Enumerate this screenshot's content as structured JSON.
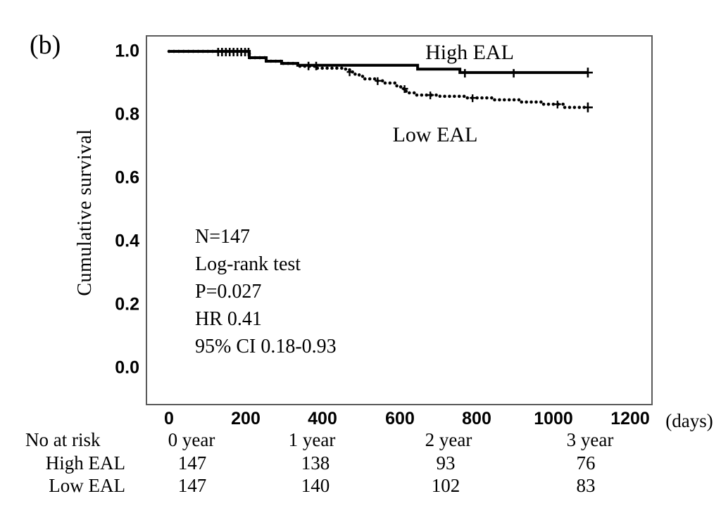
{
  "panel": {
    "label": "(b)"
  },
  "chart_data": {
    "type": "line",
    "subtype": "kaplan-meier-step",
    "title": "",
    "xlabel": "(days)",
    "ylabel": "Cumulative survival",
    "x_ticks": [
      "0",
      "200",
      "400",
      "600",
      "800",
      "1000",
      "1200"
    ],
    "y_ticks": [
      "1.0",
      "0.8",
      "0.6",
      "0.4",
      "0.2",
      "0.0"
    ],
    "x_tick_values": [
      0,
      200,
      400,
      600,
      800,
      1000,
      1200
    ],
    "y_tick_values": [
      1.0,
      0.8,
      0.6,
      0.4,
      0.2,
      0.0
    ],
    "xlim": [
      -60,
      1260
    ],
    "ylim": [
      -0.12,
      1.05
    ],
    "grid": false,
    "legend_position": "labels-on-plot",
    "line_color": "#000000",
    "annotations": [
      "N=147",
      "Log-rank test",
      "P=0.027",
      "HR 0.41",
      "95% CI 0.18-0.93"
    ],
    "series": [
      {
        "name": "Low EAL",
        "line_style": "dotted",
        "color": "#000000",
        "points": [
          [
            0,
            1.0
          ],
          [
            209,
            0.98
          ],
          [
            253,
            0.969
          ],
          [
            293,
            0.962
          ],
          [
            335,
            0.953
          ],
          [
            380,
            0.947
          ],
          [
            452,
            0.944
          ],
          [
            470,
            0.935
          ],
          [
            483,
            0.928
          ],
          [
            495,
            0.921
          ],
          [
            507,
            0.913
          ],
          [
            540,
            0.907
          ],
          [
            558,
            0.9
          ],
          [
            590,
            0.891
          ],
          [
            603,
            0.882
          ],
          [
            617,
            0.869
          ],
          [
            640,
            0.862
          ],
          [
            705,
            0.858
          ],
          [
            770,
            0.853
          ],
          [
            845,
            0.847
          ],
          [
            916,
            0.84
          ],
          [
            971,
            0.833
          ],
          [
            1026,
            0.823
          ]
        ],
        "end_day": 1090,
        "censor_days": [
          470,
          543,
          613,
          680,
          790,
          1011
        ]
      },
      {
        "name": "High EAL",
        "line_style": "solid",
        "color": "#000000",
        "points": [
          [
            0,
            1.0
          ],
          [
            209,
            0.98
          ],
          [
            253,
            0.969
          ],
          [
            293,
            0.962
          ],
          [
            335,
            0.956
          ],
          [
            647,
            0.944
          ],
          [
            757,
            0.933
          ]
        ],
        "end_day": 1090,
        "censor_days": [
          128,
          138,
          148,
          158,
          168,
          178,
          188,
          198,
          207,
          363,
          383,
          770,
          897
        ]
      }
    ]
  },
  "risk_table": {
    "header_label": "No at risk",
    "year_labels": [
      "0 year",
      "1 year",
      "2 year",
      "3 year"
    ],
    "rows": [
      {
        "label": "High EAL",
        "values": [
          "147",
          "138",
          "93",
          "76"
        ]
      },
      {
        "label": "Low EAL",
        "values": [
          "147",
          "140",
          "102",
          "83"
        ]
      }
    ]
  }
}
